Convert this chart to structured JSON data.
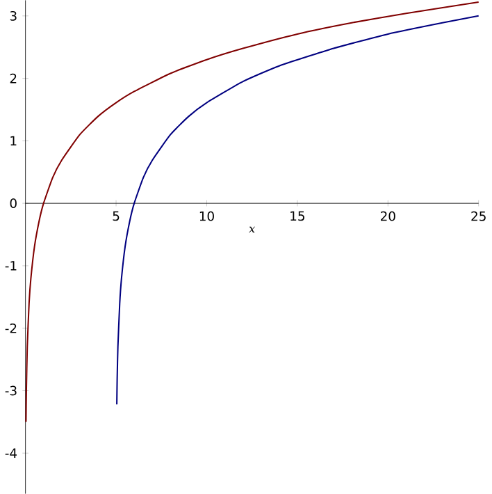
{
  "chart_data": {
    "type": "line",
    "xlabel": "x",
    "xlim": [
      0,
      25
    ],
    "ylim": [
      -4.65,
      3.25
    ],
    "xticks": [
      5,
      10,
      15,
      20,
      25
    ],
    "yticks": [
      -4,
      -3,
      -2,
      -1,
      0,
      1,
      2,
      3
    ],
    "grid": false,
    "marker": "none",
    "line_style": "solid",
    "series": [
      {
        "color": "#800000",
        "x": [
          0.03,
          0.05,
          0.1,
          0.2,
          0.3,
          0.5,
          0.75,
          1,
          1.5,
          2,
          3,
          4,
          5,
          6,
          8,
          10,
          12,
          15,
          18,
          21,
          25
        ],
        "values": [
          -3.5,
          -3.0,
          -2.3,
          -1.6,
          -1.2,
          -0.69,
          -0.29,
          0,
          0.41,
          0.69,
          1.1,
          1.39,
          1.61,
          1.79,
          2.08,
          2.3,
          2.48,
          2.71,
          2.89,
          3.04,
          3.22
        ]
      },
      {
        "color": "#000080",
        "x": [
          5.04,
          5.06,
          5.1,
          5.2,
          5.3,
          5.5,
          5.75,
          6,
          6.5,
          7,
          8,
          9,
          10,
          12,
          14,
          17,
          20,
          23,
          25
        ],
        "values": [
          -3.22,
          -2.81,
          -2.3,
          -1.61,
          -1.2,
          -0.69,
          -0.29,
          0,
          0.41,
          0.69,
          1.1,
          1.39,
          1.61,
          1.95,
          2.2,
          2.48,
          2.71,
          2.89,
          3.0
        ]
      }
    ]
  }
}
